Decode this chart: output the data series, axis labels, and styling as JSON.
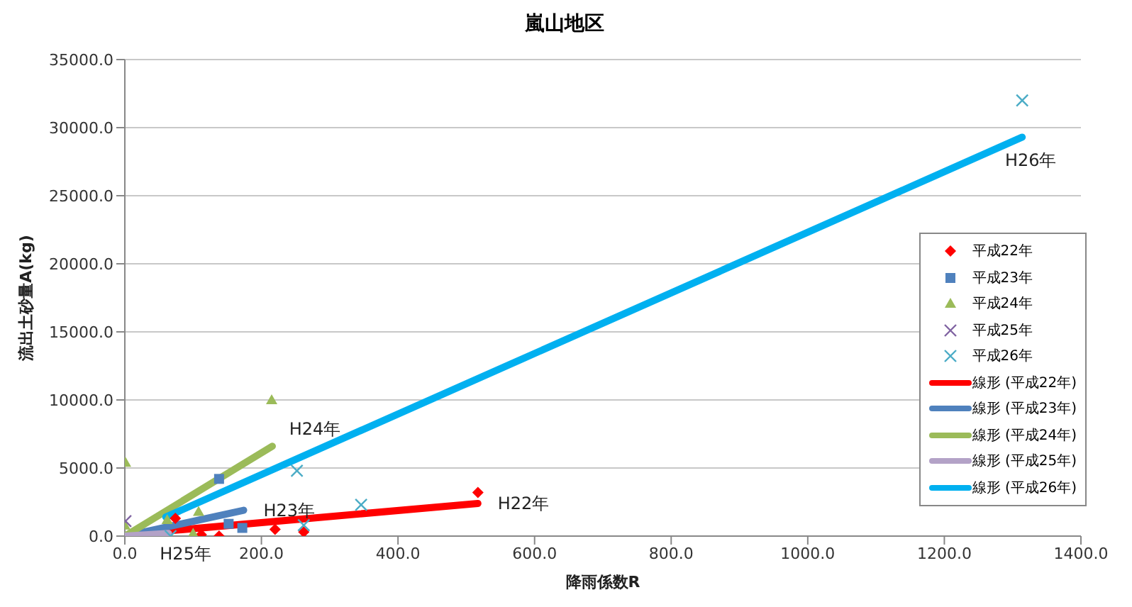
{
  "chart_data": {
    "type": "scatter",
    "title": "嵐山地区",
    "xlabel": "降雨係数R",
    "ylabel": "流出土砂量A(kg)",
    "xlim": [
      0,
      1400
    ],
    "xticks": [
      {
        "value": 0,
        "label": "0.0"
      },
      {
        "value": 200,
        "label": "200.0"
      },
      {
        "value": 400,
        "label": "400.0"
      },
      {
        "value": 600,
        "label": "600.0"
      },
      {
        "value": 800,
        "label": "800.0"
      },
      {
        "value": 1000,
        "label": "1000.0"
      },
      {
        "value": 1200,
        "label": "1200.0"
      },
      {
        "value": 1400,
        "label": "1400.0"
      }
    ],
    "ylim": [
      0,
      35000
    ],
    "yticks": [
      {
        "value": 0,
        "label": "0.0"
      },
      {
        "value": 5000,
        "label": "5000.0"
      },
      {
        "value": 10000,
        "label": "10000.0"
      },
      {
        "value": 15000,
        "label": "15000.0"
      },
      {
        "value": 20000,
        "label": "20000.0"
      },
      {
        "value": 25000,
        "label": "25000.0"
      },
      {
        "value": 30000,
        "label": "30000.0"
      },
      {
        "value": 35000,
        "label": "35000.0"
      }
    ],
    "grid": "y",
    "legend": "right",
    "series": [
      {
        "name": "平成22年",
        "type": "scatter",
        "marker": "diamond",
        "color": "#ff0000",
        "x": [
          74,
          112,
          138,
          220,
          262,
          517
        ],
        "values": [
          1300,
          100,
          0,
          500,
          300,
          3200
        ]
      },
      {
        "name": "平成23年",
        "type": "scatter",
        "marker": "square",
        "color": "#4f81bd",
        "x": [
          138,
          152,
          172
        ],
        "values": [
          4200,
          900,
          600
        ]
      },
      {
        "name": "平成24年",
        "type": "scatter",
        "marker": "triangle",
        "color": "#9bbb59",
        "x": [
          1,
          0,
          62,
          100,
          108,
          215
        ],
        "values": [
          5400,
          800,
          1200,
          200,
          1800,
          10000
        ]
      },
      {
        "name": "平成25年",
        "type": "scatter",
        "marker": "cross",
        "color": "#8064a2",
        "x": [
          1
        ],
        "values": [
          1100
        ]
      },
      {
        "name": "平成26年",
        "type": "scatter",
        "marker": "cross",
        "color": "#4bacc6",
        "x": [
          67,
          252,
          262,
          346,
          1314
        ],
        "values": [
          0,
          4800,
          800,
          2300,
          32000
        ]
      },
      {
        "name": "線形 (平成22年)",
        "type": "line",
        "marker": "none",
        "color": "#ff0000",
        "x": [
          67,
          517
        ],
        "values": [
          400,
          2400
        ]
      },
      {
        "name": "線形 (平成23年)",
        "type": "line",
        "marker": "none",
        "color": "#4f81bd",
        "x": [
          0,
          174
        ],
        "values": [
          0,
          1900
        ]
      },
      {
        "name": "線形 (平成24年)",
        "type": "line",
        "marker": "none",
        "color": "#9bbb59",
        "x": [
          0,
          216
        ],
        "values": [
          0,
          6600
        ]
      },
      {
        "name": "線形 (平成25年)",
        "type": "line",
        "marker": "none",
        "color": "#b3a2c7",
        "x": [
          0,
          64
        ],
        "values": [
          0,
          200
        ]
      },
      {
        "name": "線形 (平成26年)",
        "type": "line",
        "marker": "none",
        "color": "#00b0f0",
        "x": [
          60,
          1314
        ],
        "values": [
          1400,
          29300
        ]
      }
    ],
    "annotations": [
      "H22年",
      "H23年",
      "H24年",
      "H25年",
      "H26年"
    ]
  }
}
